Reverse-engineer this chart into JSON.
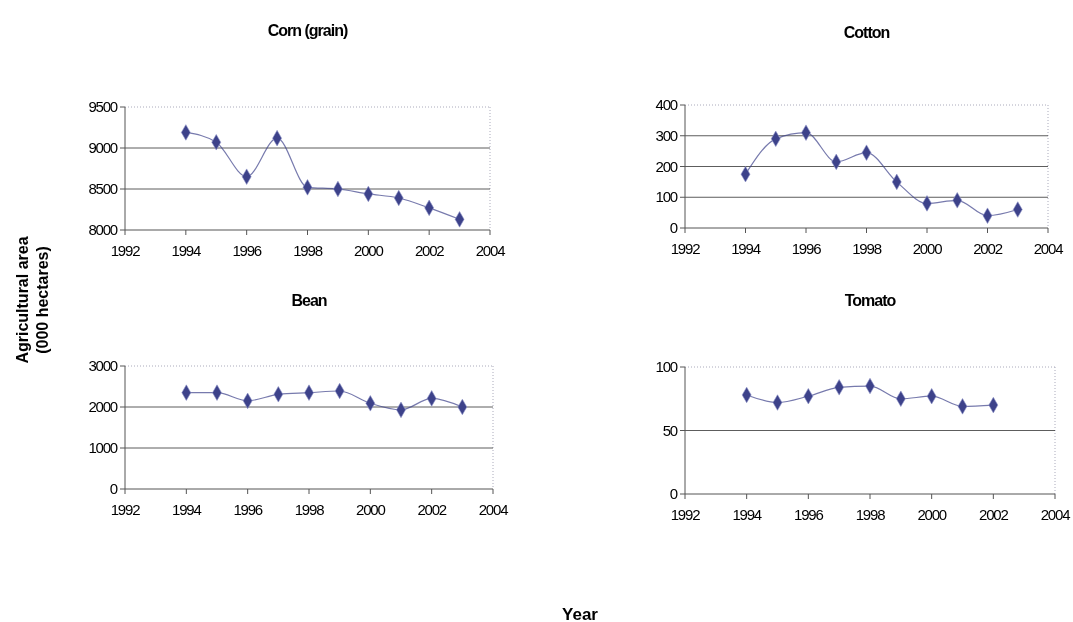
{
  "chart_data": [
    {
      "type": "line",
      "title": "Corn (grain)",
      "ylabel": "Agricultural area (000 hectares)",
      "xlabel": "Year",
      "x": [
        1994,
        1995,
        1996,
        1997,
        1998,
        1999,
        2000,
        2001,
        2002,
        2003
      ],
      "series": [
        {
          "color": "#3d428a",
          "values": [
            9190,
            9070,
            8650,
            9120,
            8520,
            8500,
            8440,
            8390,
            8270,
            8130
          ]
        }
      ],
      "xlim": [
        1992,
        2004
      ],
      "xticks": [
        1992,
        1994,
        1996,
        1998,
        2000,
        2002,
        2004
      ],
      "ylim": [
        8000,
        9500
      ],
      "yticks": [
        8000,
        8500,
        9000,
        9500
      ],
      "grid": "y",
      "marker": "diamond",
      "line_style": "solid"
    },
    {
      "type": "line",
      "title": "Cotton",
      "x": [
        1994,
        1995,
        1996,
        1997,
        1998,
        1999,
        2000,
        2001,
        2002,
        2003
      ],
      "series": [
        {
          "color": "#3d428a",
          "values": [
            175,
            290,
            310,
            215,
            245,
            150,
            80,
            90,
            40,
            60
          ]
        }
      ],
      "xlim": [
        1992,
        2004
      ],
      "xticks": [
        1992,
        1994,
        1996,
        1998,
        2000,
        2002,
        2004
      ],
      "ylim": [
        0,
        400
      ],
      "yticks": [
        0,
        100,
        200,
        300,
        400
      ],
      "grid": "y",
      "marker": "diamond",
      "line_style": "solid"
    },
    {
      "type": "line",
      "title": "Bean",
      "x": [
        1994,
        1995,
        1996,
        1997,
        1998,
        1999,
        2000,
        2001,
        2002,
        2003
      ],
      "series": [
        {
          "color": "#3d428a",
          "values": [
            2350,
            2350,
            2150,
            2310,
            2350,
            2390,
            2090,
            1930,
            2210,
            2000
          ]
        }
      ],
      "xlim": [
        1992,
        2004
      ],
      "xticks": [
        1992,
        1994,
        1996,
        1998,
        2000,
        2002,
        2004
      ],
      "ylim": [
        0,
        3000
      ],
      "yticks": [
        0,
        1000,
        2000,
        3000
      ],
      "grid": "y",
      "marker": "diamond",
      "line_style": "solid"
    },
    {
      "type": "line",
      "title": "Tomato",
      "x": [
        1994,
        1995,
        1996,
        1997,
        1998,
        1999,
        2000,
        2001,
        2002
      ],
      "series": [
        {
          "color": "#3d428a",
          "values": [
            78,
            72,
            77,
            84,
            85,
            75,
            77,
            69,
            70
          ]
        }
      ],
      "xlim": [
        1992,
        2004
      ],
      "xticks": [
        1992,
        1994,
        1996,
        1998,
        2000,
        2002,
        2004
      ],
      "ylim": [
        0,
        100
      ],
      "yticks": [
        0,
        50,
        100
      ],
      "grid": "y",
      "marker": "diamond",
      "line_style": "solid"
    }
  ]
}
